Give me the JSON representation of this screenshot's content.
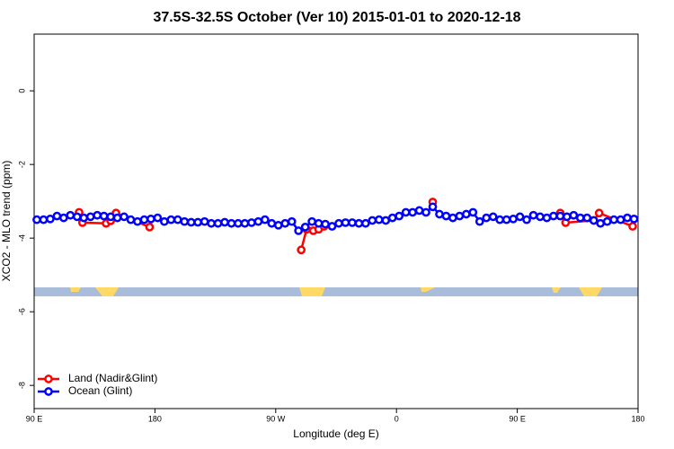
{
  "chart_data": {
    "type": "line",
    "title": "37.5S-32.5S October (Ver 10)   2015-01-01 to 2020-12-18",
    "x_label": "Longitude (deg E)",
    "y_label": "XCO2 - MLO trend (ppm)",
    "xlim": [
      90,
      540
    ],
    "xticks": [
      {
        "value": 90,
        "label": "90 E"
      },
      180,
      {
        "value": 270,
        "label": "90 W"
      },
      {
        "value": 360,
        "label": "0"
      },
      {
        "value": 450,
        "label": "90 E"
      },
      {
        "value": 540,
        "label": "180"
      }
    ],
    "ylim": [
      -8.63,
      1.54
    ],
    "yticks": [
      0,
      -2,
      -4,
      -6,
      -8
    ],
    "legend": "bottom-left",
    "series": [
      {
        "name": "Land (Nadir&Glint)",
        "color": "#ff0000",
        "x": [
          123.5,
          126,
          143.6,
          147,
          151,
          176,
          230,
          289,
          293,
          298,
          302,
          306,
          350,
          387,
          440,
          482,
          486,
          507,
          511,
          536
        ],
        "values": [
          -3.3,
          -3.58,
          -3.6,
          -3.53,
          -3.32,
          -3.7,
          null,
          -4.32,
          -3.76,
          -3.8,
          -3.76,
          -3.68,
          null,
          -3.02,
          null,
          -3.32,
          -3.58,
          -3.52,
          -3.32,
          -3.68
        ]
      },
      {
        "name": "Ocean (Glint)",
        "color": "#0000ff",
        "x": [
          92,
          97,
          102,
          107,
          112,
          117,
          122,
          127,
          132,
          137,
          142,
          147,
          152,
          157,
          162,
          167,
          172,
          177,
          182,
          187,
          192,
          197,
          202,
          207,
          212,
          217,
          222,
          227,
          232,
          237,
          242,
          247,
          252,
          257,
          262,
          267,
          272,
          277,
          282,
          287,
          292,
          297,
          302,
          307,
          312,
          317,
          322,
          327,
          332,
          337,
          342,
          347,
          352,
          357,
          362,
          367,
          372,
          377,
          382,
          387,
          392,
          397,
          402,
          407,
          412,
          417,
          422,
          427,
          432,
          437,
          442,
          447,
          452,
          457,
          462,
          467,
          472,
          477,
          482,
          487,
          492,
          497,
          502,
          507,
          512,
          517,
          522,
          527,
          532,
          537
        ],
        "values": [
          -3.5,
          -3.5,
          -3.48,
          -3.4,
          -3.45,
          -3.38,
          -3.42,
          -3.45,
          -3.42,
          -3.38,
          -3.4,
          -3.42,
          -3.45,
          -3.42,
          -3.5,
          -3.55,
          -3.5,
          -3.48,
          -3.45,
          -3.55,
          -3.5,
          -3.5,
          -3.55,
          -3.57,
          -3.57,
          -3.55,
          -3.6,
          -3.6,
          -3.57,
          -3.6,
          -3.6,
          -3.6,
          -3.58,
          -3.55,
          -3.5,
          -3.6,
          -3.65,
          -3.6,
          -3.55,
          -3.8,
          -3.7,
          -3.55,
          -3.6,
          -3.62,
          -3.68,
          -3.6,
          -3.58,
          -3.58,
          -3.6,
          -3.6,
          -3.52,
          -3.5,
          -3.52,
          -3.45,
          -3.4,
          -3.3,
          -3.3,
          -3.25,
          -3.3,
          -3.15,
          -3.35,
          -3.4,
          -3.45,
          -3.4,
          -3.35,
          -3.3,
          -3.55,
          -3.45,
          -3.42,
          -3.5,
          -3.5,
          -3.48,
          -3.42,
          -3.5,
          -3.38,
          -3.42,
          -3.45,
          -3.4,
          -3.4,
          -3.42,
          -3.38,
          -3.45,
          -3.45,
          -3.52,
          -3.6,
          -3.55,
          -3.5,
          -3.5,
          -3.45,
          -3.48
        ]
      }
    ]
  }
}
